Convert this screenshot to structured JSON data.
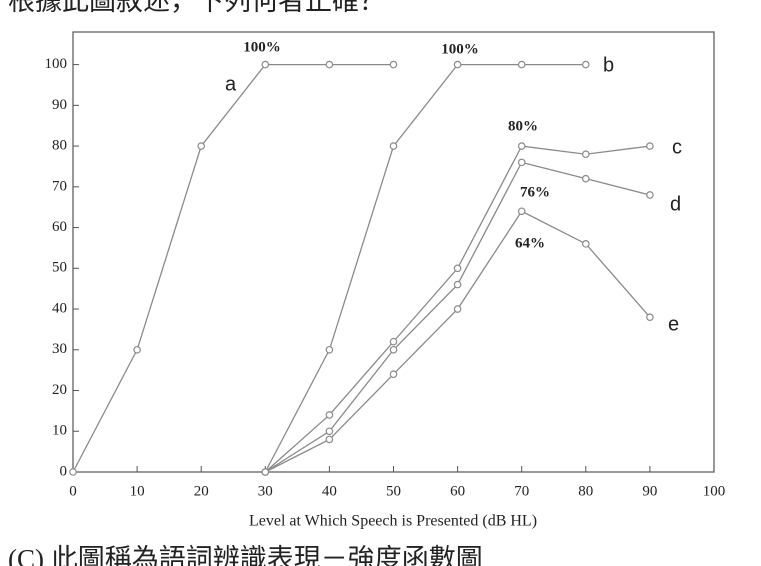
{
  "chart_data": {
    "type": "line",
    "title": "根據此圖敘述，下列何者正確？",
    "footer": "(C) 此圖稱為語詞辨識表現－強度函數圖",
    "x_label": "Level at Which Speech is Presented (dB HL)",
    "xlim": [
      0,
      100
    ],
    "xticks": [
      0,
      10,
      20,
      30,
      40,
      50,
      60,
      70,
      80,
      90,
      100
    ],
    "ylim": [
      0,
      108
    ],
    "yticks": [
      0,
      10,
      20,
      30,
      40,
      50,
      60,
      70,
      80,
      90,
      100
    ],
    "color": "#8a8a8a",
    "series": [
      {
        "name": "a",
        "x": [
          0,
          10,
          20,
          30,
          40,
          50
        ],
        "values": [
          0,
          30,
          80,
          100,
          100,
          100
        ]
      },
      {
        "name": "b",
        "x": [
          30,
          40,
          50,
          60,
          70,
          80
        ],
        "values": [
          0,
          30,
          80,
          100,
          100,
          100
        ]
      },
      {
        "name": "c",
        "x": [
          30,
          40,
          50,
          60,
          70,
          80,
          90
        ],
        "values": [
          0,
          14,
          32,
          50,
          80,
          78,
          80
        ]
      },
      {
        "name": "d",
        "x": [
          30,
          40,
          50,
          60,
          70,
          80,
          90
        ],
        "values": [
          0,
          10,
          30,
          46,
          76,
          72,
          68
        ]
      },
      {
        "name": "e",
        "x": [
          30,
          40,
          50,
          60,
          70,
          80,
          90
        ],
        "values": [
          0,
          8,
          24,
          40,
          64,
          56,
          38
        ]
      }
    ],
    "annotations": [
      "100%",
      "100%",
      "80%",
      "76%",
      "64%"
    ]
  }
}
